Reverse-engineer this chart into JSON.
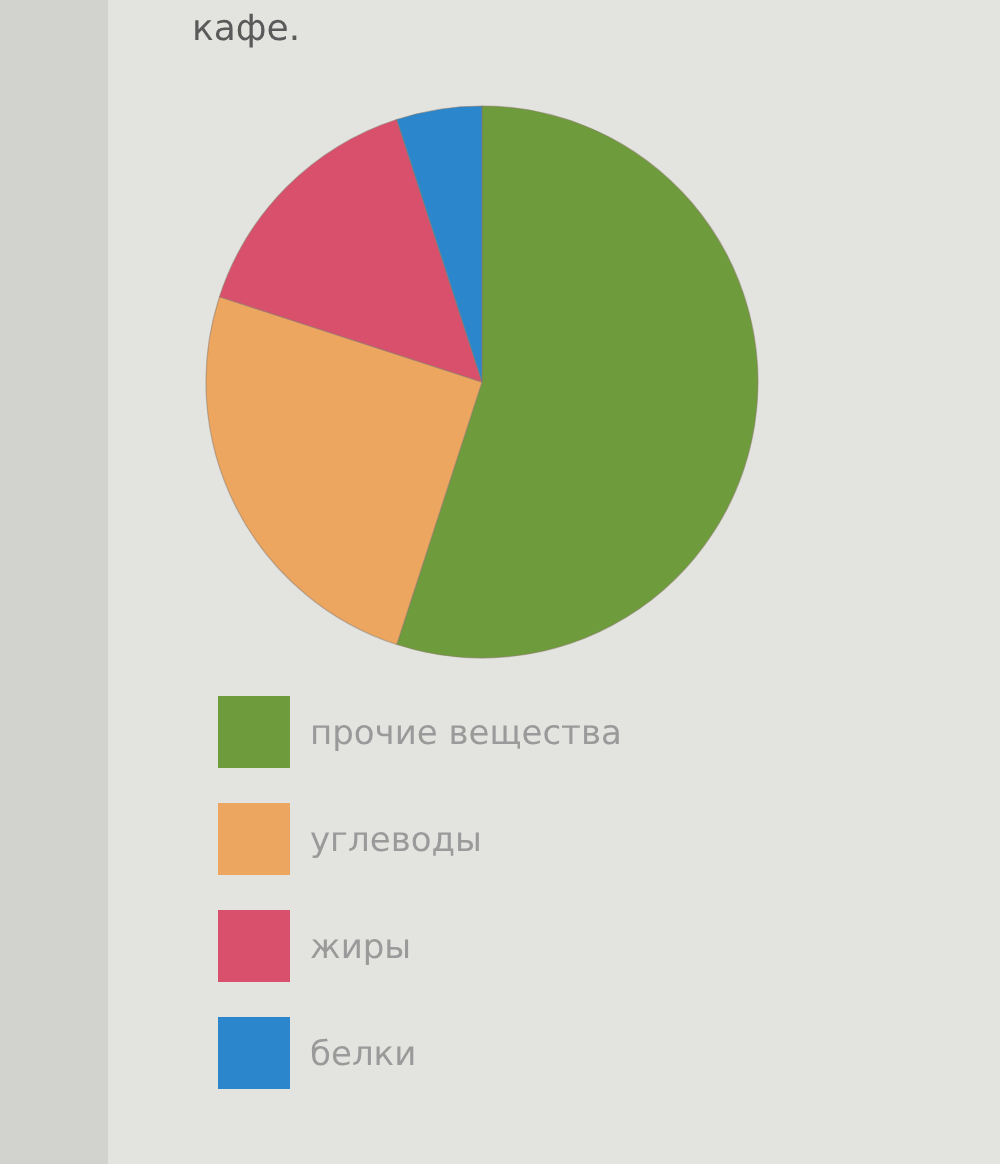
{
  "chart_data": {
    "type": "pie",
    "title": "кафе.",
    "categories": [
      "прочие вещества",
      "углеводы",
      "жиры",
      "белки"
    ],
    "values": [
      55,
      25,
      15,
      5
    ],
    "colors": [
      "#6e9c3c",
      "#eda660",
      "#d9506d",
      "#2c86cb"
    ],
    "legend": "bottom"
  }
}
